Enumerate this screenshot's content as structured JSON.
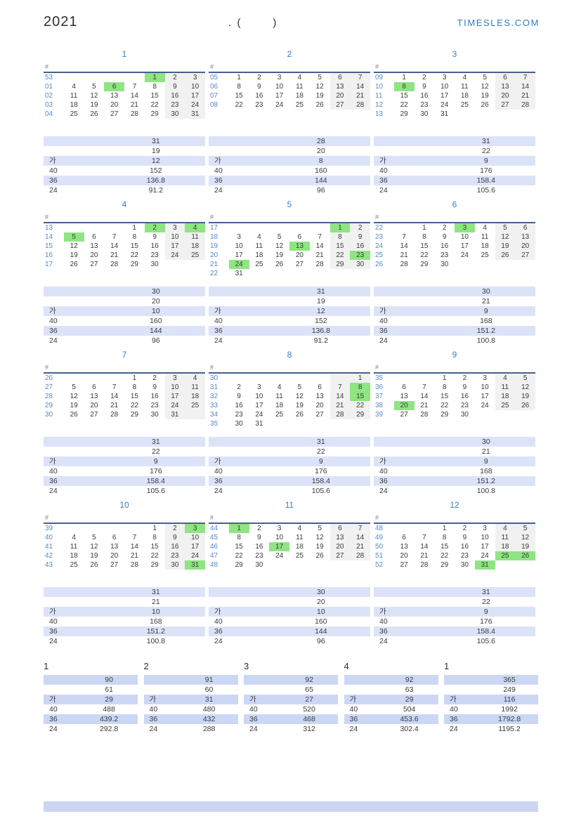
{
  "header": {
    "year": "2021",
    "subtitle": ".  (           )",
    "site": "TIMESLES.COM"
  },
  "calendar": {
    "week_col_header": "#"
  },
  "summary_labels": [
    "",
    "",
    "가",
    "40",
    "36",
    "24"
  ],
  "months": [
    {
      "title": "1",
      "weeks": [
        {
          "num": "53",
          "days": [
            "",
            "",
            "",
            "",
            "1",
            "2",
            "3"
          ],
          "green": [
            "1"
          ]
        },
        {
          "num": "01",
          "days": [
            "4",
            "5",
            "6",
            "7",
            "8",
            "9",
            "10"
          ],
          "green": [
            "6"
          ]
        },
        {
          "num": "02",
          "days": [
            "11",
            "12",
            "13",
            "14",
            "15",
            "16",
            "17"
          ],
          "green": []
        },
        {
          "num": "03",
          "days": [
            "18",
            "19",
            "20",
            "21",
            "22",
            "23",
            "24"
          ],
          "green": []
        },
        {
          "num": "04",
          "days": [
            "25",
            "26",
            "27",
            "28",
            "29",
            "30",
            "31"
          ],
          "green": []
        }
      ],
      "summary": [
        "31",
        "19",
        "12",
        "152",
        "136.8",
        "91.2"
      ]
    },
    {
      "title": "2",
      "weeks": [
        {
          "num": "05",
          "days": [
            "1",
            "2",
            "3",
            "4",
            "5",
            "6",
            "7"
          ],
          "green": []
        },
        {
          "num": "06",
          "days": [
            "8",
            "9",
            "10",
            "11",
            "12",
            "13",
            "14"
          ],
          "green": []
        },
        {
          "num": "07",
          "days": [
            "15",
            "16",
            "17",
            "18",
            "19",
            "20",
            "21"
          ],
          "green": []
        },
        {
          "num": "08",
          "days": [
            "22",
            "23",
            "24",
            "25",
            "26",
            "27",
            "28"
          ],
          "green": []
        }
      ],
      "summary": [
        "28",
        "20",
        "8",
        "160",
        "144",
        "96"
      ]
    },
    {
      "title": "3",
      "weeks": [
        {
          "num": "09",
          "days": [
            "1",
            "2",
            "3",
            "4",
            "5",
            "6",
            "7"
          ],
          "green": []
        },
        {
          "num": "10",
          "days": [
            "8",
            "9",
            "10",
            "11",
            "12",
            "13",
            "14"
          ],
          "green": [
            "8"
          ]
        },
        {
          "num": "11",
          "days": [
            "15",
            "16",
            "17",
            "18",
            "19",
            "20",
            "21"
          ],
          "green": []
        },
        {
          "num": "12",
          "days": [
            "22",
            "23",
            "24",
            "25",
            "26",
            "27",
            "28"
          ],
          "green": []
        },
        {
          "num": "13",
          "days": [
            "29",
            "30",
            "31",
            "",
            "",
            "",
            ""
          ],
          "green": []
        }
      ],
      "summary": [
        "31",
        "22",
        "9",
        "176",
        "158.4",
        "105.6"
      ]
    },
    {
      "title": "4",
      "weeks": [
        {
          "num": "13",
          "days": [
            "",
            "",
            "",
            "1",
            "2",
            "3",
            "4"
          ],
          "green": [
            "2",
            "4"
          ]
        },
        {
          "num": "14",
          "days": [
            "5",
            "6",
            "7",
            "8",
            "9",
            "10",
            "11"
          ],
          "green": [
            "5"
          ]
        },
        {
          "num": "15",
          "days": [
            "12",
            "13",
            "14",
            "15",
            "16",
            "17",
            "18"
          ],
          "green": []
        },
        {
          "num": "16",
          "days": [
            "19",
            "20",
            "21",
            "22",
            "23",
            "24",
            "25"
          ],
          "green": []
        },
        {
          "num": "17",
          "days": [
            "26",
            "27",
            "28",
            "29",
            "30",
            "",
            ""
          ],
          "green": []
        }
      ],
      "summary": [
        "30",
        "20",
        "10",
        "160",
        "144",
        "96"
      ]
    },
    {
      "title": "5",
      "weeks": [
        {
          "num": "17",
          "days": [
            "",
            "",
            "",
            "",
            "",
            "1",
            "2"
          ],
          "green": [
            "1"
          ]
        },
        {
          "num": "18",
          "days": [
            "3",
            "4",
            "5",
            "6",
            "7",
            "8",
            "9"
          ],
          "green": []
        },
        {
          "num": "19",
          "days": [
            "10",
            "11",
            "12",
            "13",
            "14",
            "15",
            "16"
          ],
          "green": [
            "13"
          ]
        },
        {
          "num": "20",
          "days": [
            "17",
            "18",
            "19",
            "20",
            "21",
            "22",
            "23"
          ],
          "green": [
            "23"
          ]
        },
        {
          "num": "21",
          "days": [
            "24",
            "25",
            "26",
            "27",
            "28",
            "29",
            "30"
          ],
          "green": [
            "24"
          ]
        },
        {
          "num": "22",
          "days": [
            "31",
            "",
            "",
            "",
            "",
            "",
            ""
          ],
          "green": []
        }
      ],
      "summary": [
        "31",
        "19",
        "12",
        "152",
        "136.8",
        "91.2"
      ]
    },
    {
      "title": "6",
      "weeks": [
        {
          "num": "22",
          "days": [
            "",
            "1",
            "2",
            "3",
            "4",
            "5",
            "6"
          ],
          "green": [
            "3"
          ]
        },
        {
          "num": "23",
          "days": [
            "7",
            "8",
            "9",
            "10",
            "11",
            "12",
            "13"
          ],
          "green": []
        },
        {
          "num": "24",
          "days": [
            "14",
            "15",
            "16",
            "17",
            "18",
            "19",
            "20"
          ],
          "green": []
        },
        {
          "num": "25",
          "days": [
            "21",
            "22",
            "23",
            "24",
            "25",
            "26",
            "27"
          ],
          "green": []
        },
        {
          "num": "26",
          "days": [
            "28",
            "29",
            "30",
            "",
            "",
            "",
            ""
          ],
          "green": []
        }
      ],
      "summary": [
        "30",
        "21",
        "9",
        "168",
        "151.2",
        "100.8"
      ]
    },
    {
      "title": "7",
      "weeks": [
        {
          "num": "26",
          "days": [
            "",
            "",
            "",
            "1",
            "2",
            "3",
            "4"
          ],
          "green": []
        },
        {
          "num": "27",
          "days": [
            "5",
            "6",
            "7",
            "8",
            "9",
            "10",
            "11"
          ],
          "green": []
        },
        {
          "num": "28",
          "days": [
            "12",
            "13",
            "14",
            "15",
            "16",
            "17",
            "18"
          ],
          "green": []
        },
        {
          "num": "29",
          "days": [
            "19",
            "20",
            "21",
            "22",
            "23",
            "24",
            "25"
          ],
          "green": []
        },
        {
          "num": "30",
          "days": [
            "26",
            "27",
            "28",
            "29",
            "30",
            "31",
            ""
          ],
          "green": []
        }
      ],
      "summary": [
        "31",
        "22",
        "9",
        "176",
        "158.4",
        "105.6"
      ]
    },
    {
      "title": "8",
      "weeks": [
        {
          "num": "30",
          "days": [
            "",
            "",
            "",
            "",
            "",
            "",
            "1"
          ],
          "green": []
        },
        {
          "num": "31",
          "days": [
            "2",
            "3",
            "4",
            "5",
            "6",
            "7",
            "8"
          ],
          "green": [
            "8"
          ]
        },
        {
          "num": "32",
          "days": [
            "9",
            "10",
            "11",
            "12",
            "13",
            "14",
            "15"
          ],
          "green": [
            "15"
          ]
        },
        {
          "num": "33",
          "days": [
            "16",
            "17",
            "18",
            "19",
            "20",
            "21",
            "22"
          ],
          "green": []
        },
        {
          "num": "34",
          "days": [
            "23",
            "24",
            "25",
            "26",
            "27",
            "28",
            "29"
          ],
          "green": []
        },
        {
          "num": "35",
          "days": [
            "30",
            "31",
            "",
            "",
            "",
            "",
            ""
          ],
          "green": []
        }
      ],
      "summary": [
        "31",
        "22",
        "9",
        "176",
        "158.4",
        "105.6"
      ]
    },
    {
      "title": "9",
      "weeks": [
        {
          "num": "35",
          "days": [
            "",
            "",
            "1",
            "2",
            "3",
            "4",
            "5"
          ],
          "green": []
        },
        {
          "num": "36",
          "days": [
            "6",
            "7",
            "8",
            "9",
            "10",
            "11",
            "12"
          ],
          "green": []
        },
        {
          "num": "37",
          "days": [
            "13",
            "14",
            "15",
            "16",
            "17",
            "18",
            "19"
          ],
          "green": []
        },
        {
          "num": "38",
          "days": [
            "20",
            "21",
            "22",
            "23",
            "24",
            "25",
            "26"
          ],
          "green": [
            "20"
          ]
        },
        {
          "num": "39",
          "days": [
            "27",
            "28",
            "29",
            "30",
            "",
            "",
            ""
          ],
          "green": []
        }
      ],
      "summary": [
        "30",
        "21",
        "9",
        "168",
        "151.2",
        "100.8"
      ]
    },
    {
      "title": "10",
      "weeks": [
        {
          "num": "39",
          "days": [
            "",
            "",
            "",
            "",
            "1",
            "2",
            "3"
          ],
          "green": [
            "3"
          ]
        },
        {
          "num": "40",
          "days": [
            "4",
            "5",
            "6",
            "7",
            "8",
            "9",
            "10"
          ],
          "green": []
        },
        {
          "num": "41",
          "days": [
            "11",
            "12",
            "13",
            "14",
            "15",
            "16",
            "17"
          ],
          "green": []
        },
        {
          "num": "42",
          "days": [
            "18",
            "19",
            "20",
            "21",
            "22",
            "23",
            "24"
          ],
          "green": []
        },
        {
          "num": "43",
          "days": [
            "25",
            "26",
            "27",
            "28",
            "29",
            "30",
            "31"
          ],
          "green": [
            "31"
          ]
        }
      ],
      "summary": [
        "31",
        "21",
        "10",
        "168",
        "151.2",
        "100.8"
      ]
    },
    {
      "title": "11",
      "weeks": [
        {
          "num": "44",
          "days": [
            "1",
            "2",
            "3",
            "4",
            "5",
            "6",
            "7"
          ],
          "green": [
            "1"
          ]
        },
        {
          "num": "45",
          "days": [
            "8",
            "9",
            "10",
            "11",
            "12",
            "13",
            "14"
          ],
          "green": []
        },
        {
          "num": "46",
          "days": [
            "15",
            "16",
            "17",
            "18",
            "19",
            "20",
            "21"
          ],
          "green": [
            "17"
          ]
        },
        {
          "num": "47",
          "days": [
            "22",
            "23",
            "24",
            "25",
            "26",
            "27",
            "28"
          ],
          "green": []
        },
        {
          "num": "48",
          "days": [
            "29",
            "30",
            "",
            "",
            "",
            "",
            ""
          ],
          "green": []
        }
      ],
      "summary": [
        "30",
        "20",
        "10",
        "160",
        "144",
        "96"
      ]
    },
    {
      "title": "12",
      "weeks": [
        {
          "num": "48",
          "days": [
            "",
            "",
            "1",
            "2",
            "3",
            "4",
            "5"
          ],
          "green": []
        },
        {
          "num": "49",
          "days": [
            "6",
            "7",
            "8",
            "9",
            "10",
            "11",
            "12"
          ],
          "green": []
        },
        {
          "num": "50",
          "days": [
            "13",
            "14",
            "15",
            "16",
            "17",
            "18",
            "19"
          ],
          "green": []
        },
        {
          "num": "51",
          "days": [
            "20",
            "21",
            "22",
            "23",
            "24",
            "25",
            "26"
          ],
          "green": [
            "25",
            "26"
          ]
        },
        {
          "num": "52",
          "days": [
            "27",
            "28",
            "29",
            "30",
            "31",
            "",
            ""
          ],
          "green": [
            "31"
          ]
        }
      ],
      "summary": [
        "31",
        "22",
        "9",
        "176",
        "158.4",
        "105.6"
      ]
    }
  ],
  "quarters": [
    {
      "title": "1",
      "summary": [
        "90",
        "61",
        "29",
        "488",
        "439.2",
        "292.8"
      ]
    },
    {
      "title": "2",
      "summary": [
        "91",
        "60",
        "31",
        "480",
        "432",
        "288"
      ]
    },
    {
      "title": "3",
      "summary": [
        "92",
        "65",
        "27",
        "520",
        "468",
        "312"
      ]
    },
    {
      "title": "4",
      "summary": [
        "92",
        "63",
        "29",
        "504",
        "453.6",
        "302.4"
      ]
    },
    {
      "title": "1",
      "summary": [
        "365",
        "249",
        "116",
        "1992",
        "1792.8",
        "1195.2"
      ]
    }
  ],
  "colors": {
    "accent_blue": "#3c7cc1",
    "week_number_blue": "#5589c8",
    "holiday_green": "#8ee582",
    "weekend_gray": "#f1f1f2",
    "month_stripe_blue": "#dce3f9",
    "quarter_stripe_blue": "#ccd7f5",
    "header_rule_blue": "#44618c",
    "site_blue": "#2e7ec9",
    "footer_bar_blue": "#ccd6f4"
  }
}
